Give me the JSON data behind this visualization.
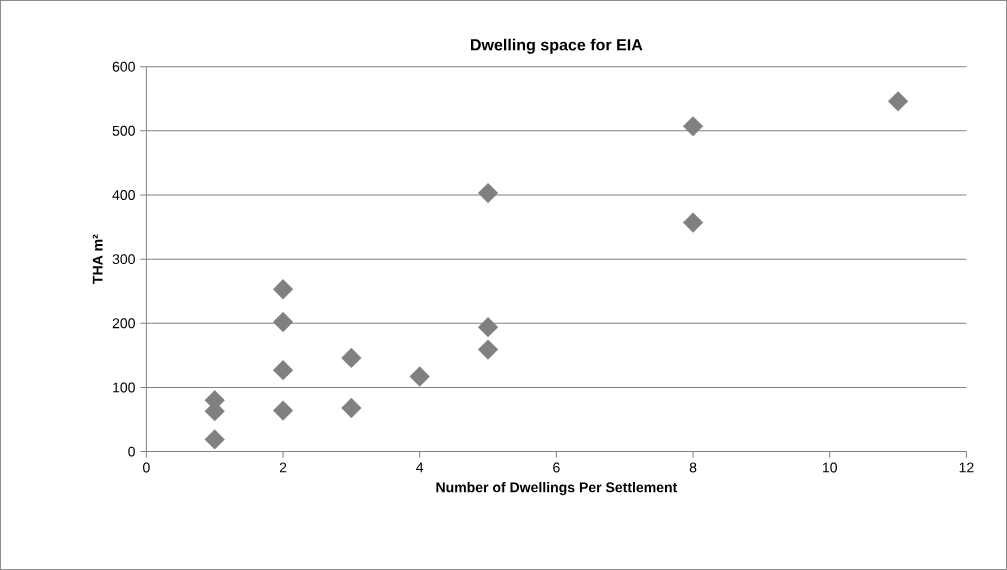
{
  "chart_data": {
    "type": "scatter",
    "title": "Dwelling space for EIA",
    "xlabel": "Number of Dwellings Per Settlement",
    "ylabel": "THA m²",
    "x": [
      1,
      1,
      1,
      2,
      2,
      2,
      2,
      3,
      3,
      4,
      5,
      5,
      5,
      8,
      8,
      11
    ],
    "series": [
      {
        "color": "#808080",
        "values": [
          80,
          63,
          19,
          253,
          202,
          127,
          64,
          146,
          68,
          117,
          194,
          159,
          403,
          507,
          357,
          546
        ]
      }
    ],
    "xlim": [
      0,
      12
    ],
    "ylim": [
      0,
      600
    ],
    "xticks": [
      0,
      2,
      4,
      6,
      8,
      10,
      12
    ],
    "yticks": [
      0,
      100,
      200,
      300,
      400,
      500,
      600
    ],
    "grid": "y",
    "marker": "diamond"
  }
}
